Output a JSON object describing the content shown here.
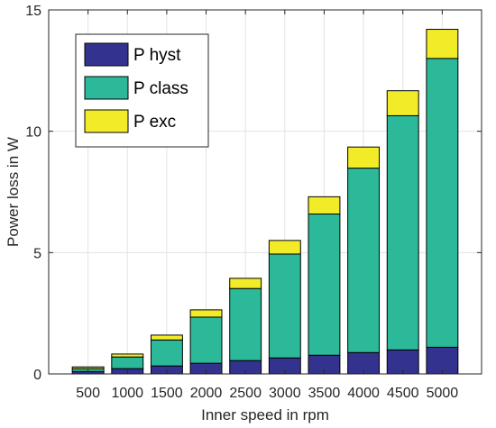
{
  "chart_data": {
    "type": "bar",
    "stacked": true,
    "categories": [
      "500",
      "1000",
      "1500",
      "2000",
      "2500",
      "3000",
      "3500",
      "4000",
      "4500",
      "5000"
    ],
    "series": [
      {
        "name": "P hyst",
        "color": "#33338f",
        "values": [
          0.1,
          0.22,
          0.33,
          0.44,
          0.55,
          0.66,
          0.77,
          0.88,
          0.99,
          1.1
        ]
      },
      {
        "name": "P class",
        "color": "#2cb99a",
        "values": [
          0.12,
          0.48,
          1.07,
          1.9,
          2.97,
          4.28,
          5.82,
          7.6,
          9.65,
          11.9
        ]
      },
      {
        "name": "P exc",
        "color": "#f2ec28",
        "values": [
          0.07,
          0.12,
          0.2,
          0.3,
          0.42,
          0.56,
          0.71,
          0.87,
          1.03,
          1.2
        ]
      }
    ],
    "xlabel": "Inner speed in rpm",
    "ylabel": "Power loss in W",
    "ylim": [
      0,
      15
    ],
    "yticks": [
      0,
      5,
      10,
      15
    ],
    "grid": true,
    "legend_position": "top-left"
  }
}
